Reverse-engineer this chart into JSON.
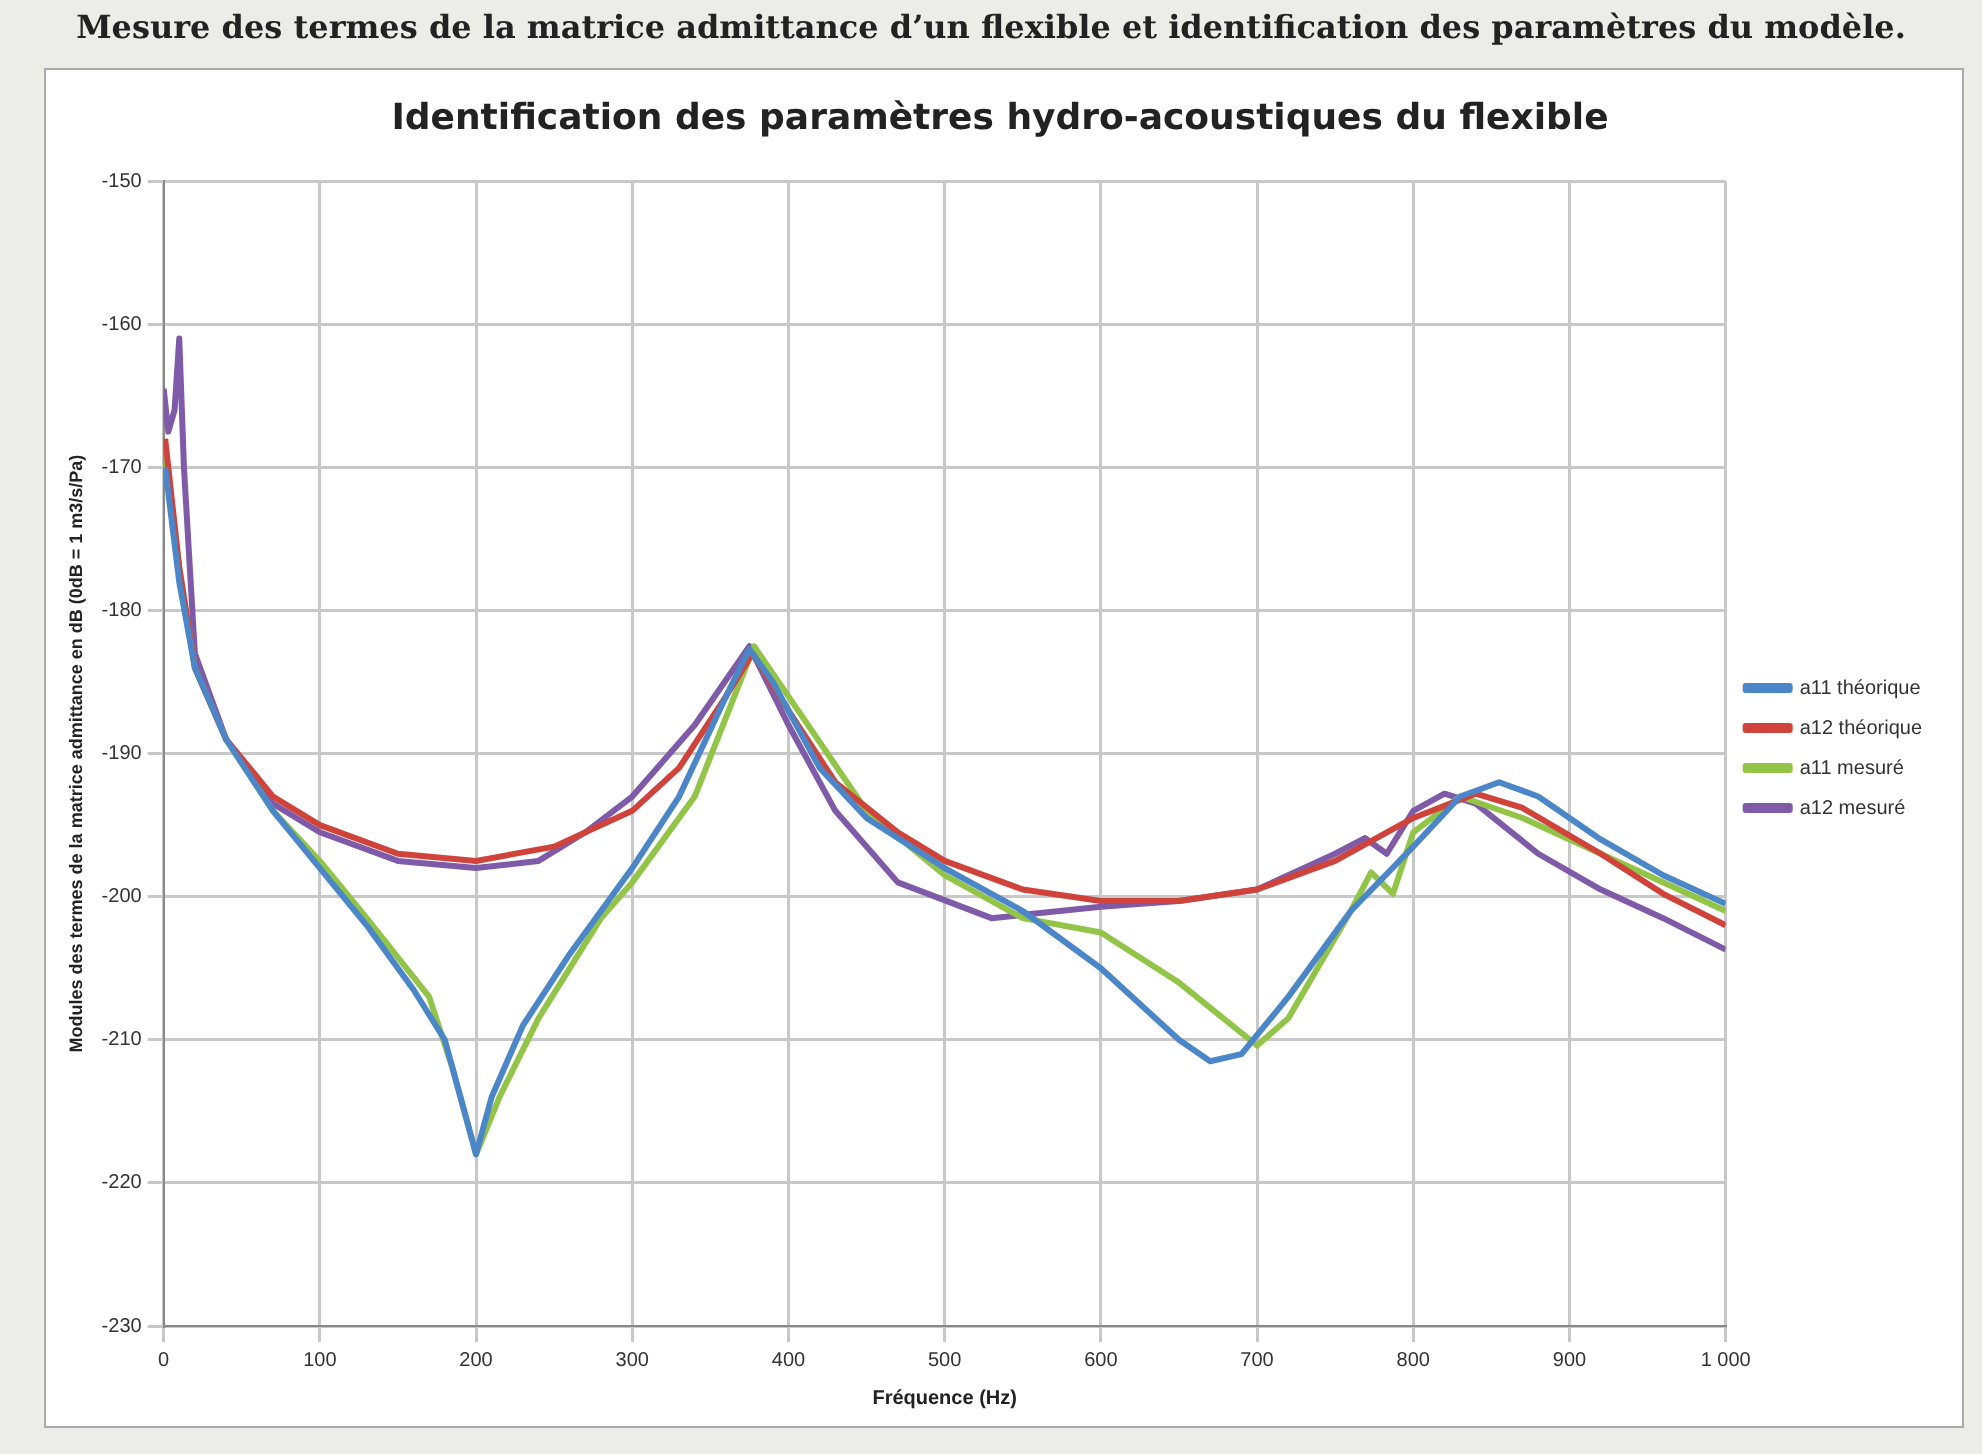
{
  "chart_data": {
    "type": "line",
    "title": "Identification des paramètres hydro-acoustiques du flexible",
    "subtitle": "Mesure des termes de la matrice admittance d’un flexible et identification des paramètres du modèle.",
    "xlabel": "Fréquence (Hz)",
    "ylabel": "Modules des termes de la matrice admittance en dB (0dB = 1 m3/s/Pa)",
    "xlim": [
      0,
      1000
    ],
    "xticks": [
      0,
      100,
      200,
      300,
      400,
      500,
      600,
      700,
      800,
      900,
      {
        "value": 1000,
        "label": "1 000"
      }
    ],
    "ylim": [
      -230,
      -150
    ],
    "yticks": [
      -230,
      -220,
      -210,
      -200,
      -190,
      -180,
      -170,
      -160,
      -150
    ],
    "grid": true,
    "legend": "right",
    "marker": "none",
    "line_style": "solid",
    "series": [
      {
        "name": "a11 théorique",
        "color": "#4a86c8",
        "x": [
          1,
          10,
          20,
          40,
          70,
          100,
          130,
          160,
          180,
          190,
          200,
          210,
          230,
          260,
          300,
          330,
          360,
          375,
          390,
          420,
          450,
          500,
          550,
          600,
          650,
          670,
          690,
          720,
          760,
          800,
          830,
          855,
          880,
          920,
          960,
          1000
        ],
        "values": [
          -170,
          -178,
          -184,
          -189,
          -194,
          -198,
          -202,
          -206.5,
          -210,
          -214,
          -218,
          -214,
          -209,
          -204,
          -198,
          -193,
          -186,
          -182.7,
          -185,
          -191,
          -194.5,
          -198,
          -201,
          -205,
          -210,
          -211.5,
          -211,
          -207,
          -201,
          -196.5,
          -193,
          -192,
          -193,
          -196,
          -198.5,
          -200.5
        ]
      },
      {
        "name": "a12 théorique",
        "color": "#d0433a",
        "x": [
          1,
          10,
          20,
          40,
          70,
          100,
          150,
          200,
          250,
          300,
          330,
          360,
          377,
          400,
          430,
          470,
          500,
          550,
          600,
          650,
          700,
          750,
          800,
          840,
          870,
          920,
          960,
          1000
        ],
        "values": [
          -168,
          -177,
          -184,
          -189,
          -193,
          -195,
          -197,
          -197.5,
          -196.5,
          -194,
          -191,
          -186,
          -183,
          -187,
          -192,
          -195.5,
          -197.5,
          -199.5,
          -200.3,
          -200.3,
          -199.5,
          -197.5,
          -194.5,
          -192.8,
          -193.8,
          -197,
          -199.8,
          -202
        ]
      },
      {
        "name": "a11 mesuré",
        "color": "#92c447",
        "x": [
          1,
          10,
          20,
          40,
          70,
          100,
          130,
          170,
          185,
          200,
          215,
          240,
          280,
          300,
          340,
          378,
          400,
          450,
          500,
          550,
          600,
          650,
          700,
          720,
          760,
          773,
          787,
          800,
          830,
          870,
          920,
          1000
        ],
        "values": [
          -169,
          -177,
          -184,
          -189,
          -194,
          -197.5,
          -201.5,
          -207,
          -212,
          -218,
          -214,
          -208.5,
          -201.5,
          -199,
          -193,
          -182.5,
          -186,
          -194,
          -198.5,
          -201.5,
          -202.5,
          -206,
          -210.4,
          -208.5,
          -201,
          -198.3,
          -199.8,
          -195.5,
          -193,
          -194.5,
          -197,
          -201
        ]
      },
      {
        "name": "a12 mesuré",
        "color": "#7f5aa8",
        "x": [
          0,
          3,
          7,
          10,
          13,
          20,
          40,
          70,
          100,
          150,
          200,
          240,
          270,
          300,
          340,
          375,
          400,
          430,
          470,
          530,
          600,
          650,
          700,
          750,
          769,
          783,
          800,
          820,
          840,
          880,
          920,
          960,
          1000
        ],
        "values": [
          -164.5,
          -167.5,
          -166,
          -161,
          -170,
          -183,
          -189,
          -193.5,
          -195.5,
          -197.5,
          -198,
          -197.5,
          -195.5,
          -193,
          -188,
          -182.5,
          -188,
          -194,
          -199,
          -201.5,
          -200.7,
          -200.3,
          -199.5,
          -197,
          -195.9,
          -197,
          -194,
          -192.8,
          -193.5,
          -197,
          -199.5,
          -201.5,
          -203.7
        ]
      }
    ]
  }
}
